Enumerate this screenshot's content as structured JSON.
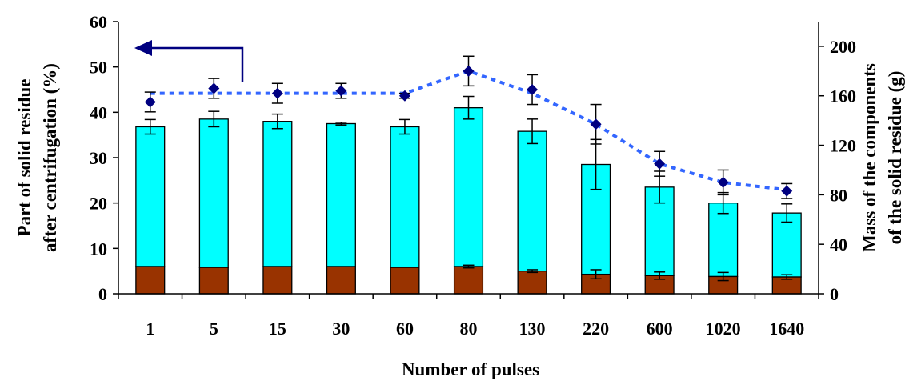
{
  "chart_data": {
    "type": "bar",
    "categories": [
      "1",
      "5",
      "15",
      "30",
      "60",
      "80",
      "130",
      "220",
      "600",
      "1020",
      "1640"
    ],
    "xlabel": "Number of pulses",
    "ylabel_left": [
      "Part of solid residue",
      "after centrifugation (%)"
    ],
    "ylabel_right": [
      "Mass of the components",
      "of the solid residue (g)"
    ],
    "ylim_left": [
      0,
      60
    ],
    "yticks_left": [
      "0",
      "10",
      "20",
      "30",
      "40",
      "50",
      "60"
    ],
    "ylim_right": [
      0,
      220
    ],
    "yticks_right": [
      "0",
      "40",
      "80",
      "120",
      "160",
      "200"
    ],
    "grid": false,
    "stacked": true,
    "series": [
      {
        "kind": "bar",
        "axis": "left",
        "color": "#993300",
        "values": [
          6.0,
          5.8,
          6.0,
          6.0,
          5.8,
          6.0,
          5.0,
          4.3,
          4.0,
          3.8,
          3.7
        ],
        "error": [
          0.0,
          0.0,
          0.0,
          0.0,
          0.0,
          0.3,
          0.3,
          1.0,
          0.8,
          0.9,
          0.5
        ]
      },
      {
        "kind": "bar",
        "axis": "left",
        "color": "#00FFFF",
        "totals": [
          36.8,
          38.5,
          38.0,
          37.5,
          36.8,
          41.0,
          35.8,
          28.5,
          23.5,
          20.0,
          17.8
        ],
        "error": [
          1.6,
          1.7,
          1.6,
          0.3,
          1.6,
          2.5,
          2.7,
          5.5,
          3.5,
          2.3,
          2.0
        ]
      },
      {
        "kind": "scatter",
        "axis": "right",
        "color": "#000080",
        "values": [
          155,
          166,
          162,
          164,
          160,
          180,
          165,
          137,
          105,
          90,
          83
        ],
        "error": [
          8,
          8,
          8,
          6,
          2,
          12,
          12,
          16,
          10,
          10,
          6
        ]
      },
      {
        "kind": "line",
        "axis": "right",
        "color": "#3366FF",
        "style": "dotted",
        "values": [
          162,
          162,
          162,
          162,
          162,
          180,
          162,
          137,
          105,
          90,
          84
        ]
      }
    ],
    "annotation": {
      "type": "arrow",
      "direction": "left",
      "color": "#000080",
      "points_to": "left axis"
    }
  }
}
